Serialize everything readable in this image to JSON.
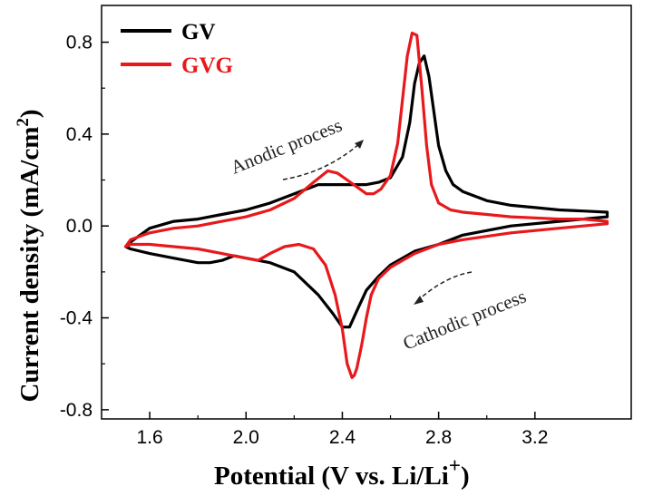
{
  "chart_data": {
    "type": "line",
    "title": "",
    "xlabel": "Potential (V vs. Li/Li",
    "xlabel_sup": "+",
    "xlabel_close": ")",
    "ylabel": "Current density (mA/cm",
    "ylabel_sup": "2",
    "ylabel_close": ")",
    "xlim": [
      1.4,
      3.6
    ],
    "ylim": [
      -0.84,
      0.96
    ],
    "x_ticks": [
      1.6,
      2.0,
      2.4,
      2.8,
      3.2
    ],
    "x_tick_labels": [
      "1.6",
      "2.0",
      "2.4",
      "2.8",
      "3.2"
    ],
    "y_ticks": [
      -0.8,
      -0.4,
      0.0,
      0.4,
      0.8
    ],
    "y_tick_labels": [
      "-0.8",
      "-0.4",
      "0.0",
      "0.4",
      "0.8"
    ],
    "grid": false,
    "legend_position": "top-left",
    "annotations": {
      "anodic": "Anodic process",
      "cathodic": "Cathodic process"
    },
    "series": [
      {
        "name": "GV",
        "color": "#000000",
        "points": [
          [
            3.5,
            0.04
          ],
          [
            3.3,
            0.02
          ],
          [
            3.1,
            0.0
          ],
          [
            2.9,
            -0.04
          ],
          [
            2.8,
            -0.08
          ],
          [
            2.7,
            -0.11
          ],
          [
            2.6,
            -0.17
          ],
          [
            2.55,
            -0.22
          ],
          [
            2.5,
            -0.28
          ],
          [
            2.46,
            -0.37
          ],
          [
            2.43,
            -0.44
          ],
          [
            2.4,
            -0.44
          ],
          [
            2.36,
            -0.38
          ],
          [
            2.3,
            -0.3
          ],
          [
            2.2,
            -0.2
          ],
          [
            2.1,
            -0.16
          ],
          [
            2.0,
            -0.14
          ],
          [
            1.95,
            -0.13
          ],
          [
            1.9,
            -0.15
          ],
          [
            1.85,
            -0.16
          ],
          [
            1.8,
            -0.16
          ],
          [
            1.7,
            -0.14
          ],
          [
            1.6,
            -0.12
          ],
          [
            1.52,
            -0.1
          ],
          [
            1.5,
            -0.09
          ],
          [
            1.52,
            -0.07
          ],
          [
            1.6,
            -0.01
          ],
          [
            1.7,
            0.02
          ],
          [
            1.8,
            0.03
          ],
          [
            1.9,
            0.05
          ],
          [
            2.0,
            0.07
          ],
          [
            2.1,
            0.1
          ],
          [
            2.2,
            0.14
          ],
          [
            2.3,
            0.18
          ],
          [
            2.4,
            0.18
          ],
          [
            2.5,
            0.18
          ],
          [
            2.55,
            0.19
          ],
          [
            2.6,
            0.21
          ],
          [
            2.65,
            0.3
          ],
          [
            2.68,
            0.45
          ],
          [
            2.7,
            0.62
          ],
          [
            2.72,
            0.71
          ],
          [
            2.74,
            0.74
          ],
          [
            2.76,
            0.65
          ],
          [
            2.78,
            0.5
          ],
          [
            2.8,
            0.35
          ],
          [
            2.83,
            0.24
          ],
          [
            2.86,
            0.18
          ],
          [
            2.9,
            0.15
          ],
          [
            3.0,
            0.11
          ],
          [
            3.1,
            0.09
          ],
          [
            3.2,
            0.08
          ],
          [
            3.3,
            0.07
          ],
          [
            3.4,
            0.065
          ],
          [
            3.5,
            0.06
          ],
          [
            3.5,
            0.04
          ]
        ]
      },
      {
        "name": "GVG",
        "color": "#e8181c",
        "points": [
          [
            3.5,
            0.01
          ],
          [
            3.3,
            -0.01
          ],
          [
            3.1,
            -0.03
          ],
          [
            2.9,
            -0.06
          ],
          [
            2.8,
            -0.08
          ],
          [
            2.7,
            -0.12
          ],
          [
            2.6,
            -0.18
          ],
          [
            2.55,
            -0.23
          ],
          [
            2.52,
            -0.3
          ],
          [
            2.5,
            -0.4
          ],
          [
            2.48,
            -0.52
          ],
          [
            2.46,
            -0.62
          ],
          [
            2.45,
            -0.65
          ],
          [
            2.44,
            -0.66
          ],
          [
            2.42,
            -0.6
          ],
          [
            2.4,
            -0.45
          ],
          [
            2.37,
            -0.3
          ],
          [
            2.33,
            -0.17
          ],
          [
            2.28,
            -0.1
          ],
          [
            2.22,
            -0.08
          ],
          [
            2.16,
            -0.09
          ],
          [
            2.1,
            -0.12
          ],
          [
            2.05,
            -0.15
          ],
          [
            2.0,
            -0.14
          ],
          [
            1.9,
            -0.12
          ],
          [
            1.8,
            -0.1
          ],
          [
            1.7,
            -0.09
          ],
          [
            1.6,
            -0.08
          ],
          [
            1.52,
            -0.08
          ],
          [
            1.5,
            -0.09
          ],
          [
            1.52,
            -0.06
          ],
          [
            1.6,
            -0.03
          ],
          [
            1.7,
            -0.01
          ],
          [
            1.8,
            0.0
          ],
          [
            1.9,
            0.02
          ],
          [
            2.0,
            0.04
          ],
          [
            2.1,
            0.07
          ],
          [
            2.2,
            0.12
          ],
          [
            2.28,
            0.19
          ],
          [
            2.34,
            0.24
          ],
          [
            2.38,
            0.23
          ],
          [
            2.42,
            0.2
          ],
          [
            2.46,
            0.17
          ],
          [
            2.5,
            0.14
          ],
          [
            2.53,
            0.14
          ],
          [
            2.56,
            0.16
          ],
          [
            2.6,
            0.22
          ],
          [
            2.63,
            0.36
          ],
          [
            2.65,
            0.55
          ],
          [
            2.67,
            0.74
          ],
          [
            2.69,
            0.84
          ],
          [
            2.71,
            0.83
          ],
          [
            2.73,
            0.6
          ],
          [
            2.75,
            0.35
          ],
          [
            2.77,
            0.18
          ],
          [
            2.8,
            0.1
          ],
          [
            2.85,
            0.07
          ],
          [
            2.9,
            0.06
          ],
          [
            3.0,
            0.05
          ],
          [
            3.1,
            0.04
          ],
          [
            3.2,
            0.035
          ],
          [
            3.3,
            0.03
          ],
          [
            3.4,
            0.03
          ],
          [
            3.5,
            0.02
          ],
          [
            3.5,
            0.01
          ]
        ]
      }
    ]
  }
}
